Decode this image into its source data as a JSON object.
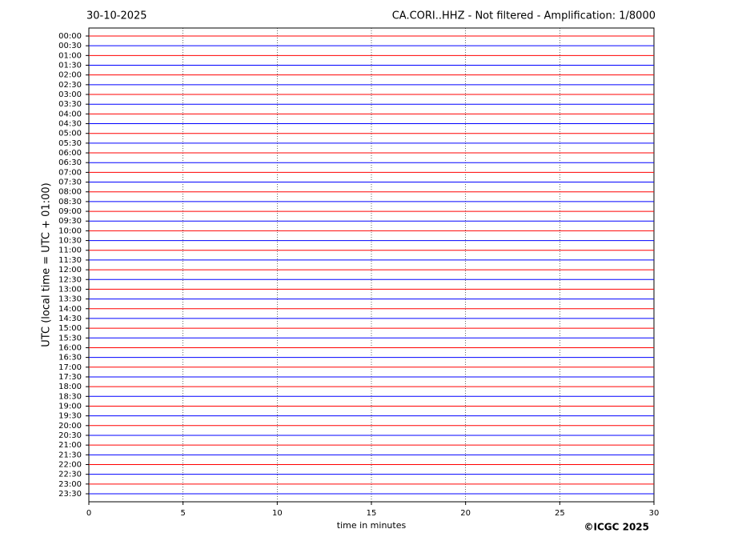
{
  "chart_data": {
    "type": "helicorder",
    "date": "30-10-2025",
    "title": "CA.CORI..HHZ - Not filtered - Amplification: 1/8000",
    "ylabel": "UTC (local time = UTC + 01:00)",
    "xlabel": "time in minutes",
    "copyright": "©ICGC 2025",
    "categories": [
      "00:00",
      "00:30",
      "01:00",
      "01:30",
      "02:00",
      "02:30",
      "03:00",
      "03:30",
      "04:00",
      "04:30",
      "05:00",
      "05:30",
      "06:00",
      "06:30",
      "07:00",
      "07:30",
      "08:00",
      "08:30",
      "09:00",
      "09:30",
      "10:00",
      "10:30",
      "11:00",
      "11:30",
      "12:00",
      "12:30",
      "13:00",
      "13:30",
      "14:00",
      "14:30",
      "15:00",
      "15:30",
      "16:00",
      "16:30",
      "17:00",
      "17:30",
      "18:00",
      "18:30",
      "19:00",
      "19:30",
      "20:00",
      "20:30",
      "21:00",
      "21:30",
      "22:00",
      "22:30",
      "23:00",
      "23:30"
    ],
    "trace_colors": [
      "#ff0000",
      "#0000ff"
    ],
    "xlim": [
      0,
      30
    ],
    "xticks": [
      0,
      5,
      10,
      15,
      20,
      25,
      30
    ],
    "grid": true
  }
}
